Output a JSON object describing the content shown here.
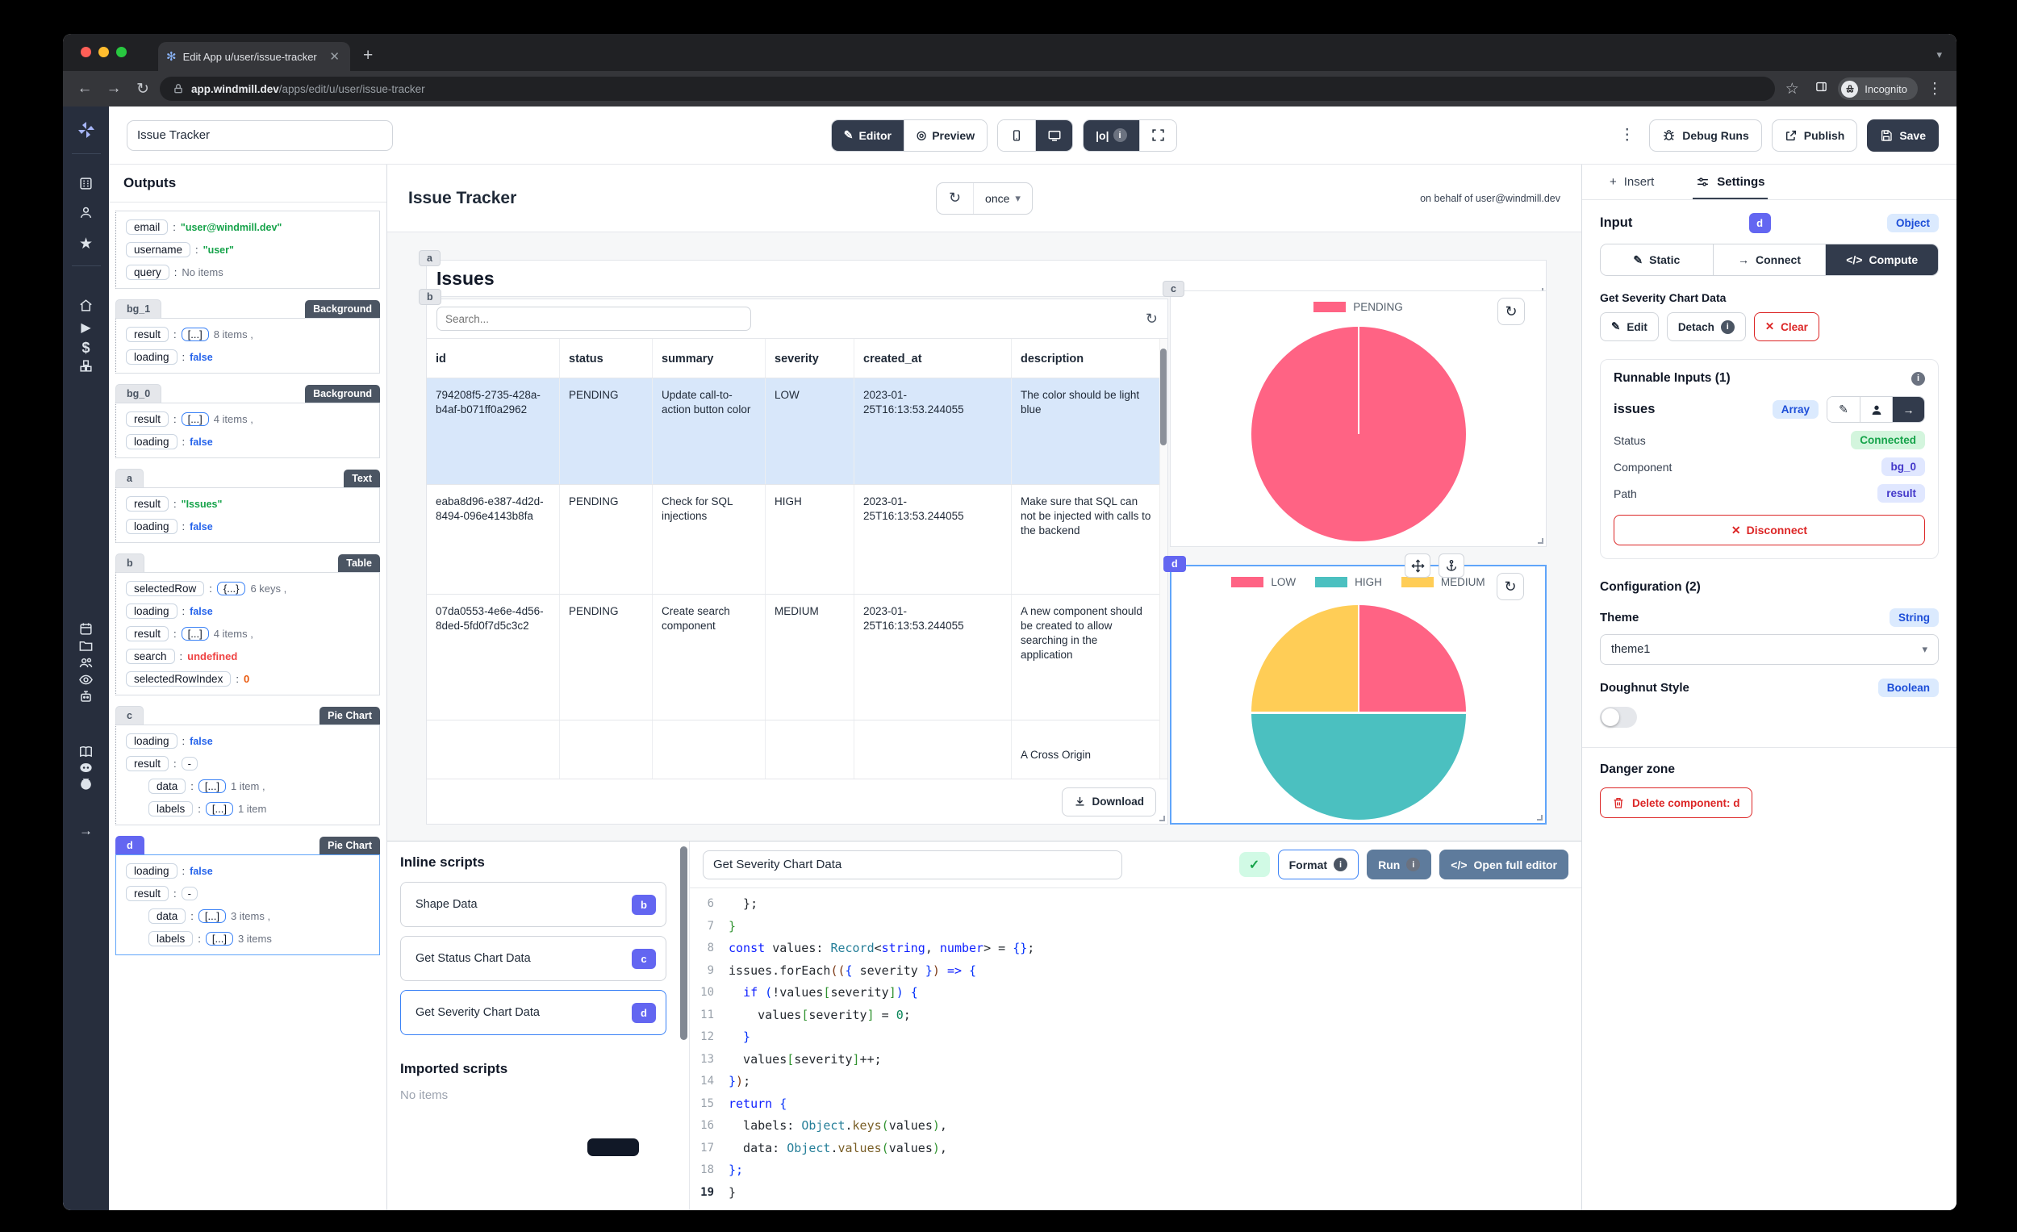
{
  "colors": {
    "accent": "#6366f1",
    "dark": "#323b4c",
    "danger": "#dc2626",
    "success": "#16a34a",
    "selection": "#60a5fa"
  },
  "browser": {
    "tab_title": "Edit App u/user/issue-tracker |",
    "url_host": "app.windmill.dev",
    "url_path": "/apps/edit/u/user/issue-tracker",
    "incognito_label": "Incognito"
  },
  "topbar": {
    "app_name": "Issue Tracker",
    "editor": "Editor",
    "preview": "Preview",
    "outputs_toggle": "|o|",
    "debug_runs": "Debug Runs",
    "publish": "Publish",
    "save": "Save"
  },
  "sidebar": {
    "items": [
      {
        "name": "windmill-logo"
      },
      {
        "name": "workspace"
      },
      {
        "name": "user"
      },
      {
        "name": "favorites"
      },
      {
        "name": "home"
      },
      {
        "name": "runs"
      },
      {
        "name": "variables"
      },
      {
        "name": "resources"
      },
      {
        "name": "schedules"
      },
      {
        "name": "folders"
      },
      {
        "name": "groups"
      },
      {
        "name": "audit-logs"
      },
      {
        "name": "workers"
      },
      {
        "name": "docs"
      },
      {
        "name": "discord"
      },
      {
        "name": "github"
      },
      {
        "name": "collapse"
      }
    ]
  },
  "outputs": {
    "title": "Outputs",
    "sections": [
      {
        "id": "",
        "type": "",
        "rows": [
          {
            "key": "email",
            "value": "\"user@windmill.dev\"",
            "cls": "v-green"
          },
          {
            "key": "username",
            "value": "\"user\"",
            "cls": "v-green"
          },
          {
            "key": "query",
            "value": "No items",
            "cls": "v-muted"
          }
        ]
      },
      {
        "id": "bg_1",
        "type": "Background",
        "rows": [
          {
            "key": "result",
            "badge": "[...]",
            "value": "8 items ,",
            "cls": "v-muted"
          },
          {
            "key": "loading",
            "value": "false",
            "cls": "v-blue"
          }
        ]
      },
      {
        "id": "bg_0",
        "type": "Background",
        "rows": [
          {
            "key": "result",
            "badge": "[...]",
            "value": "4 items ,",
            "cls": "v-muted"
          },
          {
            "key": "loading",
            "value": "false",
            "cls": "v-blue"
          }
        ]
      },
      {
        "id": "a",
        "type": "Text",
        "rows": [
          {
            "key": "result",
            "value": "\"Issues\"",
            "cls": "v-green"
          },
          {
            "key": "loading",
            "value": "false",
            "cls": "v-blue"
          }
        ]
      },
      {
        "id": "b",
        "type": "Table",
        "rows": [
          {
            "key": "selectedRow",
            "badge": "{...}",
            "value": "6 keys ,",
            "cls": "v-muted"
          },
          {
            "key": "loading",
            "value": "false",
            "cls": "v-blue"
          },
          {
            "key": "result",
            "badge": "[...]",
            "value": "4 items ,",
            "cls": "v-muted"
          },
          {
            "key": "search",
            "value": "undefined",
            "cls": "v-red"
          },
          {
            "key": "selectedRowIndex",
            "value": "0",
            "cls": "v-orange"
          }
        ]
      },
      {
        "id": "c",
        "type": "Pie Chart",
        "rows": [
          {
            "key": "loading",
            "value": "false",
            "cls": "v-blue"
          },
          {
            "key": "result",
            "badge": "-",
            "graybadge": true
          },
          {
            "key": "data",
            "badge": "[...]",
            "value": "1 item ,",
            "cls": "v-muted",
            "indent": true
          },
          {
            "key": "labels",
            "badge": "[...]",
            "value": "1 item",
            "cls": "v-muted",
            "indent": true
          }
        ]
      },
      {
        "id": "d",
        "type": "Pie Chart",
        "selected": true,
        "rows": [
          {
            "key": "loading",
            "value": "false",
            "cls": "v-blue"
          },
          {
            "key": "result",
            "badge": "-",
            "graybadge": true
          },
          {
            "key": "data",
            "badge": "[...]",
            "value": "3 items ,",
            "cls": "v-muted",
            "indent": true
          },
          {
            "key": "labels",
            "badge": "[...]",
            "value": "3 items",
            "cls": "v-muted",
            "indent": true
          }
        ]
      }
    ]
  },
  "canvas": {
    "title": "Issue Tracker",
    "schedule": "once",
    "on_behalf": "on behalf of user@windmill.dev",
    "text_a": {
      "badge": "a",
      "text": "Issues"
    },
    "table_b": {
      "badge": "b",
      "search_placeholder": "Search...",
      "columns": [
        "id",
        "status",
        "summary",
        "severity",
        "created_at",
        "description"
      ],
      "rows": [
        [
          "794208f5-2735-428a-b4af-b071ff0a2962",
          "PENDING",
          "Update call-to-action button color",
          "LOW",
          "2023-01-25T16:13:53.244055",
          "The color should be light blue"
        ],
        [
          "eaba8d96-e387-4d2d-8494-096e4143b8fa",
          "PENDING",
          "Check for SQL injections",
          "HIGH",
          "2023-01-25T16:13:53.244055",
          "Make sure that SQL can not be injected with calls to the backend"
        ],
        [
          "07da0553-4e6e-4d56-8ded-5fd0f7d5c3c2",
          "PENDING",
          "Create search component",
          "MEDIUM",
          "2023-01-25T16:13:53.244055",
          "A new component should be created to allow searching in the application"
        ]
      ],
      "partial_description": "A Cross Origin",
      "selected_row_index": 0,
      "download_label": "Download"
    },
    "pie_c": {
      "badge": "c",
      "legend": [
        {
          "label": "PENDING",
          "color": "#FF6384"
        }
      ],
      "slices": [
        {
          "label": "PENDING",
          "value": 100,
          "color": "#FF6384"
        }
      ]
    },
    "pie_d": {
      "badge": "d",
      "legend": [
        {
          "label": "LOW",
          "color": "#FF6384"
        },
        {
          "label": "HIGH",
          "color": "#4BC0C0"
        },
        {
          "label": "MEDIUM",
          "color": "#FFCD56"
        }
      ],
      "slices": [
        {
          "label": "LOW",
          "value": 25,
          "color": "#FF6384"
        },
        {
          "label": "HIGH",
          "value": 50,
          "color": "#4BC0C0"
        },
        {
          "label": "MEDIUM",
          "value": 25,
          "color": "#FFCD56"
        }
      ]
    }
  },
  "inline_scripts": {
    "title": "Inline scripts",
    "items": [
      {
        "label": "Shape Data",
        "badge": "b",
        "selected": false
      },
      {
        "label": "Get Status Chart Data",
        "badge": "c",
        "selected": false
      },
      {
        "label": "Get Severity Chart Data",
        "badge": "d",
        "selected": true
      }
    ],
    "imported_title": "Imported scripts",
    "imported_empty": "No items"
  },
  "editor": {
    "name": "Get Severity Chart Data",
    "format_label": "Format",
    "run_label": "Run",
    "open_full_label": "Open full editor",
    "lines": [
      {
        "n": 6,
        "toks": [
          [
            "  };",
            "p"
          ]
        ]
      },
      {
        "n": 7,
        "toks": [
          [
            "}",
            "g"
          ]
        ]
      },
      {
        "n": 8,
        "toks": [
          [
            "const ",
            "k"
          ],
          [
            "values",
            "p"
          ],
          [
            ": ",
            "p"
          ],
          [
            "Record",
            "t"
          ],
          [
            "<",
            "p"
          ],
          [
            "string",
            "k"
          ],
          [
            ", ",
            "p"
          ],
          [
            "number",
            "k"
          ],
          [
            "> = ",
            "p"
          ],
          [
            "{}",
            "u"
          ],
          [
            ";",
            "p"
          ]
        ]
      },
      {
        "n": 9,
        "toks": [
          [
            "issues.forEach",
            "p"
          ],
          [
            "((",
            "o"
          ],
          [
            "{ ",
            "u"
          ],
          [
            "severity",
            "p"
          ],
          [
            " }",
            "u"
          ],
          [
            ")",
            "o"
          ],
          [
            " ",
            "p"
          ],
          [
            "=>",
            "k"
          ],
          [
            " {",
            "u"
          ]
        ]
      },
      {
        "n": 10,
        "toks": [
          [
            "  ",
            "p"
          ],
          [
            "if",
            "k"
          ],
          [
            " (",
            "u"
          ],
          [
            "!values",
            "p"
          ],
          [
            "[",
            "g"
          ],
          [
            "severity",
            "p"
          ],
          [
            "]",
            "g"
          ],
          [
            ") {",
            "u"
          ]
        ]
      },
      {
        "n": 11,
        "toks": [
          [
            "    values",
            "p"
          ],
          [
            "[",
            "g"
          ],
          [
            "severity",
            "p"
          ],
          [
            "]",
            "g"
          ],
          [
            " = ",
            "p"
          ],
          [
            "0",
            "n"
          ],
          [
            ";",
            "p"
          ]
        ]
      },
      {
        "n": 12,
        "toks": [
          [
            "  }",
            "u"
          ]
        ]
      },
      {
        "n": 13,
        "toks": [
          [
            "  values",
            "p"
          ],
          [
            "[",
            "g"
          ],
          [
            "severity",
            "p"
          ],
          [
            "]",
            "g"
          ],
          [
            "++;",
            "p"
          ]
        ]
      },
      {
        "n": 14,
        "toks": [
          [
            "}",
            "u"
          ],
          [
            ")",
            "o"
          ],
          [
            ";",
            "p"
          ]
        ]
      },
      {
        "n": 15,
        "toks": [
          [
            "return",
            "k"
          ],
          [
            " {",
            "u"
          ]
        ]
      },
      {
        "n": 16,
        "toks": [
          [
            "  labels: ",
            "p"
          ],
          [
            "Object",
            "t"
          ],
          [
            ".",
            "p"
          ],
          [
            "keys",
            "m"
          ],
          [
            "(",
            "g"
          ],
          [
            "values",
            "p"
          ],
          [
            ")",
            "g"
          ],
          [
            ",",
            "p"
          ]
        ]
      },
      {
        "n": 17,
        "toks": [
          [
            "  data: ",
            "p"
          ],
          [
            "Object",
            "t"
          ],
          [
            ".",
            "p"
          ],
          [
            "values",
            "m"
          ],
          [
            "(",
            "g"
          ],
          [
            "values",
            "p"
          ],
          [
            ")",
            "g"
          ],
          [
            ",",
            "p"
          ]
        ]
      },
      {
        "n": 18,
        "toks": [
          [
            "};",
            "u"
          ]
        ]
      },
      {
        "n": 19,
        "active": true,
        "toks": [
          [
            "}",
            "p"
          ]
        ]
      }
    ]
  },
  "settings": {
    "insert_tab": "Insert",
    "settings_tab": "Settings",
    "input_label": "Input",
    "component_badge": "d",
    "input_type": "Object",
    "modes": [
      "Static",
      "Connect",
      "Compute"
    ],
    "runnable_name": "Get Severity Chart Data",
    "edit_label": "Edit",
    "detach_label": "Detach",
    "clear_label": "Clear",
    "runnable_inputs": {
      "title": "Runnable Inputs (1)",
      "field": "issues",
      "field_type": "Array",
      "status_label": "Status",
      "status_value": "Connected",
      "component_label": "Component",
      "component_value": "bg_0",
      "path_label": "Path",
      "path_value": "result",
      "disconnect_label": "Disconnect"
    },
    "configuration": {
      "title": "Configuration (2)",
      "theme_label": "Theme",
      "theme_type": "String",
      "theme_value": "theme1",
      "doughnut_label": "Doughnut Style",
      "doughnut_type": "Boolean",
      "doughnut_value": false
    },
    "danger": {
      "title": "Danger zone",
      "delete_label": "Delete component: d"
    }
  }
}
